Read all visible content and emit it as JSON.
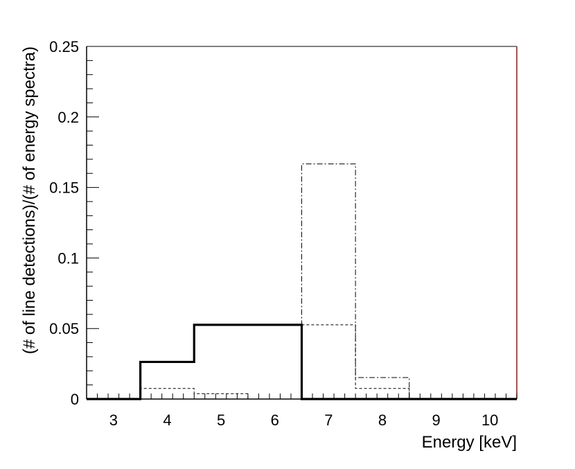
{
  "chart_data": {
    "type": "histogram",
    "xlabel": "Energy [keV]",
    "ylabel": "(# of line detections)/(# of energy spectra)",
    "xlim": [
      2.5,
      10.5
    ],
    "ylim": [
      0,
      0.25
    ],
    "x_ticks": [
      "3",
      "4",
      "5",
      "6",
      "7",
      "8",
      "9",
      "10"
    ],
    "y_ticks": [
      "0",
      "0.05",
      "0.1",
      "0.15",
      "0.2",
      "0.25"
    ],
    "bin_edges": [
      2.5,
      3.5,
      4.5,
      5.5,
      6.5,
      7.5,
      8.5,
      9.5,
      10.5
    ],
    "series": [
      {
        "style": "solid-thick",
        "values": [
          0,
          0.0263,
          0.0526,
          0.0526,
          0,
          0,
          0,
          0
        ]
      },
      {
        "style": "dashed",
        "values": [
          0,
          0.0075,
          0.0038,
          0,
          0.0526,
          0.0075,
          0,
          0
        ]
      },
      {
        "style": "dash-dot",
        "values": [
          0,
          0,
          0,
          0,
          0.1667,
          0.0152,
          0,
          0
        ]
      }
    ],
    "grid": false,
    "colors": {
      "axis": "#000000",
      "right_edge": "#8b1a1a"
    }
  }
}
